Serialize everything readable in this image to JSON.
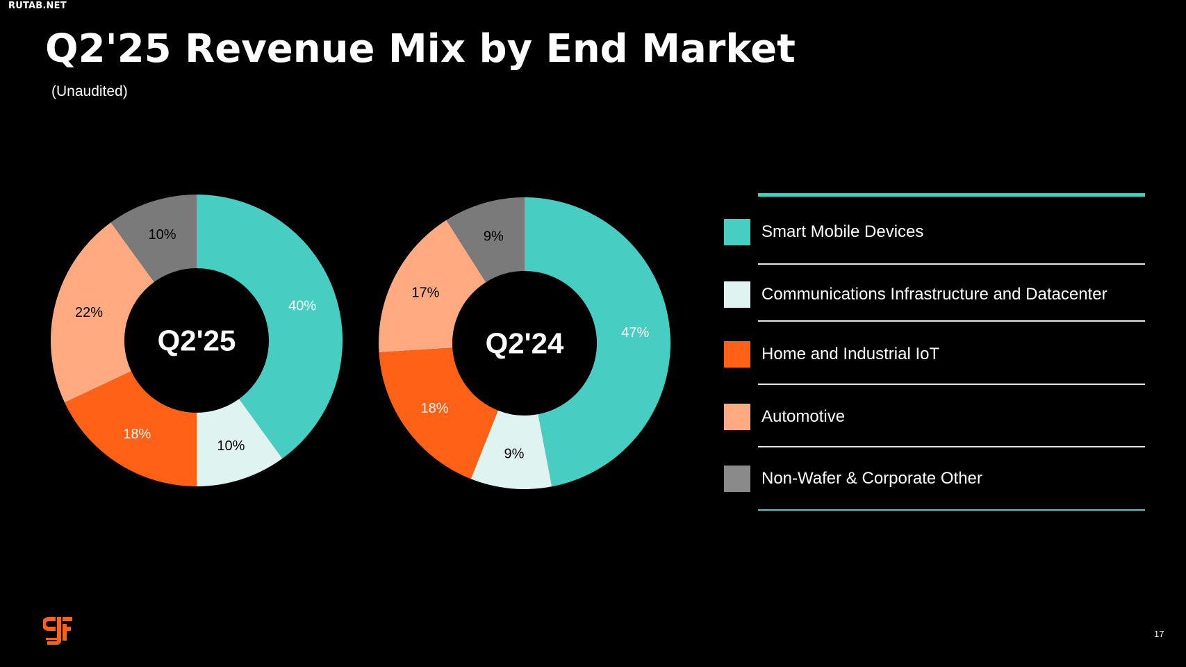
{
  "watermark": "RUTAB.NET",
  "title": "Q2'25 Revenue Mix by End Market",
  "subtitle": "(Unaudited)",
  "page_number": "17",
  "logo_icon": "gf-logo-icon",
  "colors": {
    "background": "#000000",
    "accent": "#48cdc3",
    "divider": "#e6e6e6"
  },
  "legend": {
    "items": [
      {
        "label": "Smart Mobile Devices",
        "color": "#48cdc3"
      },
      {
        "label": "Communications Infrastructure and Datacenter",
        "color": "#dff3f0"
      },
      {
        "label": "Home and Industrial IoT",
        "color": "#ff6217"
      },
      {
        "label": "Automotive",
        "color": "#ffaa80"
      },
      {
        "label": "Non-Wafer & Corporate Other",
        "color": "#8a8a8a"
      }
    ]
  },
  "chart_data": [
    {
      "type": "pie",
      "donut": true,
      "center_label": "Q2'25",
      "categories": [
        "Smart Mobile Devices",
        "Communications Infrastructure and Datacenter",
        "Home and Industrial IoT",
        "Automotive",
        "Non-Wafer & Corporate Other"
      ],
      "values": [
        40,
        10,
        18,
        22,
        10
      ],
      "labels": [
        "40%",
        "10%",
        "18%",
        "22%",
        "10%"
      ],
      "colors": [
        "#48cdc3",
        "#dff3f0",
        "#ff6217",
        "#ffaa80",
        "#7a7a7a"
      ],
      "label_colors": [
        "#ffffff",
        "#000000",
        "#ffffff",
        "#000000",
        "#000000"
      ]
    },
    {
      "type": "pie",
      "donut": true,
      "center_label": "Q2'24",
      "categories": [
        "Smart Mobile Devices",
        "Communications Infrastructure and Datacenter",
        "Home and Industrial IoT",
        "Automotive",
        "Non-Wafer & Corporate Other"
      ],
      "values": [
        47,
        9,
        18,
        17,
        9
      ],
      "labels": [
        "47%",
        "9%",
        "18%",
        "17%",
        "9%"
      ],
      "colors": [
        "#48cdc3",
        "#dff3f0",
        "#ff6217",
        "#ffaa80",
        "#7a7a7a"
      ],
      "label_colors": [
        "#ffffff",
        "#000000",
        "#ffffff",
        "#000000",
        "#000000"
      ]
    }
  ]
}
